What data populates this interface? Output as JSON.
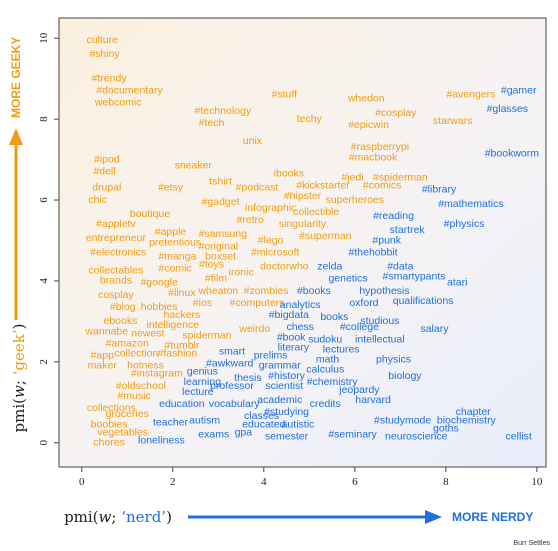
{
  "chart_data": {
    "type": "scatter",
    "xlim": [
      -0.5,
      10.2
    ],
    "ylim": [
      -0.6,
      10.5
    ],
    "x_ticks": [
      "0",
      "2",
      "4",
      "6",
      "8",
      "10"
    ],
    "y_ticks": [
      "0",
      "2",
      "4",
      "6",
      "8",
      "10"
    ],
    "xlabel_prefix": "pmi(",
    "xlabel_var": "w",
    "xlabel_sep": "; ",
    "xlabel_quote": "‘nerd’",
    "xlabel_suffix": ")",
    "ylabel_prefix": "pmi(",
    "ylabel_var": "w",
    "ylabel_sep": "; ",
    "ylabel_quote": "‘geek’",
    "ylabel_suffix": ")",
    "x_arrow_label": "MORE NERDY",
    "y_arrow_label": "MORE GEEKY",
    "credit": "Burr Settles",
    "colors": {
      "geek": "#f39c12",
      "nerd": "#1f6fe0",
      "axis_arrow_geek": "#f39c12",
      "axis_arrow_nerd": "#1f6fe0"
    },
    "points": [
      {
        "w": "culture",
        "x": 0.45,
        "y": 9.95,
        "g": 1
      },
      {
        "w": "#shiny",
        "x": 0.5,
        "y": 9.6,
        "g": 1
      },
      {
        "w": "#trendy",
        "x": 0.6,
        "y": 9.0,
        "g": 1
      },
      {
        "w": "#documentary",
        "x": 1.05,
        "y": 8.7,
        "g": 1
      },
      {
        "w": "webcomic",
        "x": 0.8,
        "y": 8.4,
        "g": 1
      },
      {
        "w": "#stuff",
        "x": 4.45,
        "y": 8.6,
        "g": 1
      },
      {
        "w": "whedon",
        "x": 6.25,
        "y": 8.5,
        "g": 1
      },
      {
        "w": "#avengers",
        "x": 8.55,
        "y": 8.6,
        "g": 1
      },
      {
        "w": "#gamer",
        "x": 9.6,
        "y": 8.7,
        "g": 0
      },
      {
        "w": "#technology",
        "x": 3.1,
        "y": 8.2,
        "g": 1
      },
      {
        "w": "techy",
        "x": 5.0,
        "y": 8.0,
        "g": 1
      },
      {
        "w": "#cosplay",
        "x": 6.9,
        "y": 8.15,
        "g": 1
      },
      {
        "w": "#glasses",
        "x": 9.35,
        "y": 8.25,
        "g": 0
      },
      {
        "w": "#tech",
        "x": 2.85,
        "y": 7.9,
        "g": 1
      },
      {
        "w": "#epicwin",
        "x": 6.3,
        "y": 7.85,
        "g": 1
      },
      {
        "w": "starwars",
        "x": 8.15,
        "y": 7.95,
        "g": 1
      },
      {
        "w": "unix",
        "x": 3.75,
        "y": 7.45,
        "g": 1
      },
      {
        "w": "#raspberrypi",
        "x": 6.55,
        "y": 7.3,
        "g": 1
      },
      {
        "w": "#macbook",
        "x": 6.4,
        "y": 7.05,
        "g": 1
      },
      {
        "w": "#bookworm",
        "x": 9.45,
        "y": 7.15,
        "g": 0
      },
      {
        "w": "#ipod",
        "x": 0.55,
        "y": 7.0,
        "g": 1
      },
      {
        "w": "sneaker",
        "x": 2.45,
        "y": 6.85,
        "g": 1
      },
      {
        "w": "#dell",
        "x": 0.5,
        "y": 6.7,
        "g": 1
      },
      {
        "w": "ibooks",
        "x": 4.55,
        "y": 6.65,
        "g": 1
      },
      {
        "w": "#jedi",
        "x": 5.95,
        "y": 6.55,
        "g": 1
      },
      {
        "w": "#spiderman",
        "x": 7.0,
        "y": 6.55,
        "g": 1
      },
      {
        "w": "tshirt",
        "x": 3.05,
        "y": 6.45,
        "g": 1
      },
      {
        "w": "#kickstarter",
        "x": 5.3,
        "y": 6.35,
        "g": 1
      },
      {
        "w": "#comics",
        "x": 6.6,
        "y": 6.35,
        "g": 1
      },
      {
        "w": "drupal",
        "x": 0.55,
        "y": 6.3,
        "g": 1
      },
      {
        "w": "#etsy",
        "x": 1.95,
        "y": 6.3,
        "g": 1
      },
      {
        "w": "#podcast",
        "x": 3.85,
        "y": 6.3,
        "g": 1
      },
      {
        "w": "#library",
        "x": 7.85,
        "y": 6.25,
        "g": 0
      },
      {
        "w": "#hipster",
        "x": 4.85,
        "y": 6.1,
        "g": 1
      },
      {
        "w": "superheroes",
        "x": 6.0,
        "y": 6.0,
        "g": 1
      },
      {
        "w": "chic",
        "x": 0.35,
        "y": 6.0,
        "g": 1
      },
      {
        "w": "#gadget",
        "x": 3.05,
        "y": 5.95,
        "g": 1
      },
      {
        "w": "#mathematics",
        "x": 8.55,
        "y": 5.9,
        "g": 0
      },
      {
        "w": "infographic",
        "x": 4.15,
        "y": 5.8,
        "g": 1
      },
      {
        "w": "collectible",
        "x": 5.15,
        "y": 5.7,
        "g": 1
      },
      {
        "w": "boutique",
        "x": 1.5,
        "y": 5.65,
        "g": 1
      },
      {
        "w": "#reading",
        "x": 6.85,
        "y": 5.6,
        "g": 0
      },
      {
        "w": "#retro",
        "x": 3.7,
        "y": 5.5,
        "g": 1
      },
      {
        "w": "singularity",
        "x": 4.85,
        "y": 5.4,
        "g": 1
      },
      {
        "w": "#physics",
        "x": 8.4,
        "y": 5.4,
        "g": 0
      },
      {
        "w": "#appletv",
        "x": 0.75,
        "y": 5.4,
        "g": 1
      },
      {
        "w": "#apple",
        "x": 1.95,
        "y": 5.2,
        "g": 1
      },
      {
        "w": "#samsung",
        "x": 3.1,
        "y": 5.15,
        "g": 1
      },
      {
        "w": "startrek",
        "x": 7.15,
        "y": 5.25,
        "g": 0
      },
      {
        "w": "#superman",
        "x": 5.35,
        "y": 5.1,
        "g": 1
      },
      {
        "w": "entrepreneur",
        "x": 0.75,
        "y": 5.05,
        "g": 1
      },
      {
        "w": "pretentious",
        "x": 2.05,
        "y": 4.95,
        "g": 1
      },
      {
        "w": "#lego",
        "x": 4.15,
        "y": 5.0,
        "g": 1
      },
      {
        "w": "#punk",
        "x": 6.7,
        "y": 5.0,
        "g": 0
      },
      {
        "w": "#original",
        "x": 3.0,
        "y": 4.85,
        "g": 1
      },
      {
        "w": "#electronics",
        "x": 0.8,
        "y": 4.7,
        "g": 1
      },
      {
        "w": "#manga",
        "x": 2.1,
        "y": 4.6,
        "g": 1
      },
      {
        "w": "#microsoft",
        "x": 4.25,
        "y": 4.7,
        "g": 1
      },
      {
        "w": "#thehobbit",
        "x": 6.4,
        "y": 4.7,
        "g": 0
      },
      {
        "w": "boxset",
        "x": 3.05,
        "y": 4.6,
        "g": 1
      },
      {
        "w": "#toys",
        "x": 2.85,
        "y": 4.4,
        "g": 1
      },
      {
        "w": "doctorwho",
        "x": 4.45,
        "y": 4.35,
        "g": 1
      },
      {
        "w": "zelda",
        "x": 5.45,
        "y": 4.35,
        "g": 0
      },
      {
        "w": "#data",
        "x": 7.0,
        "y": 4.35,
        "g": 0
      },
      {
        "w": "collectables",
        "x": 0.75,
        "y": 4.25,
        "g": 1
      },
      {
        "w": "#comic",
        "x": 2.05,
        "y": 4.3,
        "g": 1
      },
      {
        "w": "ironic",
        "x": 3.5,
        "y": 4.2,
        "g": 1
      },
      {
        "w": "#smartypants",
        "x": 7.3,
        "y": 4.1,
        "g": 0
      },
      {
        "w": "genetics",
        "x": 5.85,
        "y": 4.05,
        "g": 0
      },
      {
        "w": "brands",
        "x": 0.75,
        "y": 4.0,
        "g": 1
      },
      {
        "w": "#google",
        "x": 1.7,
        "y": 3.95,
        "g": 1
      },
      {
        "w": "#film",
        "x": 2.95,
        "y": 4.05,
        "g": 1
      },
      {
        "w": "atari",
        "x": 8.25,
        "y": 3.95,
        "g": 0
      },
      {
        "w": "wheaton",
        "x": 3.0,
        "y": 3.75,
        "g": 1
      },
      {
        "w": "#zombies",
        "x": 4.05,
        "y": 3.75,
        "g": 1
      },
      {
        "w": "#books",
        "x": 5.1,
        "y": 3.75,
        "g": 0
      },
      {
        "w": "hypothesis",
        "x": 6.65,
        "y": 3.75,
        "g": 0
      },
      {
        "w": "cosplay",
        "x": 0.75,
        "y": 3.65,
        "g": 1
      },
      {
        "w": "#linux",
        "x": 2.2,
        "y": 3.7,
        "g": 1
      },
      {
        "w": "qualifications",
        "x": 7.5,
        "y": 3.5,
        "g": 0
      },
      {
        "w": "#computers",
        "x": 3.85,
        "y": 3.45,
        "g": 1
      },
      {
        "w": "#blog",
        "x": 0.9,
        "y": 3.35,
        "g": 1
      },
      {
        "w": "hobbies",
        "x": 1.7,
        "y": 3.35,
        "g": 1
      },
      {
        "w": "#ios",
        "x": 2.65,
        "y": 3.45,
        "g": 1
      },
      {
        "w": "analytics",
        "x": 4.8,
        "y": 3.4,
        "g": 0
      },
      {
        "w": "oxford",
        "x": 6.2,
        "y": 3.45,
        "g": 0
      },
      {
        "w": "hackers",
        "x": 2.2,
        "y": 3.15,
        "g": 1
      },
      {
        "w": "#bigdata",
        "x": 4.55,
        "y": 3.15,
        "g": 0
      },
      {
        "w": "books",
        "x": 5.55,
        "y": 3.1,
        "g": 0
      },
      {
        "w": "studious",
        "x": 6.55,
        "y": 3.0,
        "g": 0
      },
      {
        "w": "ebooks",
        "x": 0.85,
        "y": 3.0,
        "g": 1
      },
      {
        "w": "intelligence",
        "x": 2.0,
        "y": 2.9,
        "g": 1
      },
      {
        "w": "weirdo",
        "x": 3.8,
        "y": 2.8,
        "g": 1
      },
      {
        "w": "chess",
        "x": 4.8,
        "y": 2.85,
        "g": 0
      },
      {
        "w": "#college",
        "x": 6.1,
        "y": 2.85,
        "g": 0
      },
      {
        "w": "salary",
        "x": 7.75,
        "y": 2.8,
        "g": 0
      },
      {
        "w": "wannabe",
        "x": 0.55,
        "y": 2.75,
        "g": 1
      },
      {
        "w": "newest",
        "x": 1.45,
        "y": 2.7,
        "g": 1
      },
      {
        "w": "spiderman",
        "x": 2.75,
        "y": 2.65,
        "g": 1
      },
      {
        "w": "#book",
        "x": 4.6,
        "y": 2.6,
        "g": 0
      },
      {
        "w": "sudoku",
        "x": 5.35,
        "y": 2.55,
        "g": 0
      },
      {
        "w": "intellectual",
        "x": 6.55,
        "y": 2.55,
        "g": 0
      },
      {
        "w": "#amazon",
        "x": 1.0,
        "y": 2.45,
        "g": 1
      },
      {
        "w": "#tumblr",
        "x": 2.2,
        "y": 2.4,
        "g": 1
      },
      {
        "w": "literary",
        "x": 4.65,
        "y": 2.35,
        "g": 0
      },
      {
        "w": "lectures",
        "x": 5.7,
        "y": 2.3,
        "g": 0
      },
      {
        "w": "#app",
        "x": 0.45,
        "y": 2.15,
        "g": 1
      },
      {
        "w": "collection",
        "x": 1.2,
        "y": 2.2,
        "g": 1
      },
      {
        "w": "#fashion",
        "x": 2.1,
        "y": 2.2,
        "g": 1
      },
      {
        "w": "smart",
        "x": 3.3,
        "y": 2.25,
        "g": 0
      },
      {
        "w": "prelims",
        "x": 4.15,
        "y": 2.15,
        "g": 0
      },
      {
        "w": "math",
        "x": 5.4,
        "y": 2.05,
        "g": 0
      },
      {
        "w": "physics",
        "x": 6.85,
        "y": 2.05,
        "g": 0
      },
      {
        "w": "maker",
        "x": 0.45,
        "y": 1.9,
        "g": 1
      },
      {
        "w": "hotness",
        "x": 1.4,
        "y": 1.9,
        "g": 1
      },
      {
        "w": "#awkward",
        "x": 3.25,
        "y": 1.95,
        "g": 0
      },
      {
        "w": "grammar",
        "x": 4.35,
        "y": 1.9,
        "g": 0
      },
      {
        "w": "calculus",
        "x": 5.35,
        "y": 1.8,
        "g": 0
      },
      {
        "w": "#instagram",
        "x": 1.65,
        "y": 1.7,
        "g": 1
      },
      {
        "w": "genius",
        "x": 2.65,
        "y": 1.75,
        "g": 0
      },
      {
        "w": "thesis",
        "x": 3.65,
        "y": 1.6,
        "g": 0
      },
      {
        "w": "#history",
        "x": 4.5,
        "y": 1.65,
        "g": 0
      },
      {
        "w": "biology",
        "x": 7.1,
        "y": 1.65,
        "g": 0
      },
      {
        "w": "#oldschool",
        "x": 1.3,
        "y": 1.4,
        "g": 1
      },
      {
        "w": "learning",
        "x": 2.65,
        "y": 1.5,
        "g": 0
      },
      {
        "w": "#chemistry",
        "x": 5.5,
        "y": 1.5,
        "g": 0
      },
      {
        "w": "professor",
        "x": 3.3,
        "y": 1.4,
        "g": 0
      },
      {
        "w": "scientist",
        "x": 4.45,
        "y": 1.4,
        "g": 0
      },
      {
        "w": "lecture",
        "x": 2.55,
        "y": 1.25,
        "g": 0
      },
      {
        "w": "jeopardy",
        "x": 6.1,
        "y": 1.3,
        "g": 0
      },
      {
        "w": "#music",
        "x": 1.15,
        "y": 1.15,
        "g": 1
      },
      {
        "w": "academic",
        "x": 4.35,
        "y": 1.05,
        "g": 0
      },
      {
        "w": "harvard",
        "x": 6.4,
        "y": 1.05,
        "g": 0
      },
      {
        "w": "education",
        "x": 2.2,
        "y": 0.95,
        "g": 0
      },
      {
        "w": "vocabulary",
        "x": 3.35,
        "y": 0.95,
        "g": 0
      },
      {
        "w": "credits",
        "x": 5.35,
        "y": 0.95,
        "g": 0
      },
      {
        "w": "collections",
        "x": 0.65,
        "y": 0.85,
        "g": 1
      },
      {
        "w": "chapter",
        "x": 8.6,
        "y": 0.75,
        "g": 0
      },
      {
        "w": "#studying",
        "x": 4.5,
        "y": 0.75,
        "g": 0
      },
      {
        "w": "groceries",
        "x": 1.0,
        "y": 0.7,
        "g": 1
      },
      {
        "w": "classes",
        "x": 3.95,
        "y": 0.65,
        "g": 0
      },
      {
        "w": "autism",
        "x": 2.7,
        "y": 0.55,
        "g": 0
      },
      {
        "w": "teacher",
        "x": 1.95,
        "y": 0.5,
        "g": 0
      },
      {
        "w": "educated",
        "x": 4.0,
        "y": 0.45,
        "g": 0
      },
      {
        "w": "#studymode",
        "x": 7.05,
        "y": 0.55,
        "g": 0
      },
      {
        "w": "biochemistry",
        "x": 8.45,
        "y": 0.55,
        "g": 0
      },
      {
        "w": "boobies",
        "x": 0.6,
        "y": 0.45,
        "g": 1
      },
      {
        "w": "autistic",
        "x": 4.75,
        "y": 0.45,
        "g": 0
      },
      {
        "w": "goths",
        "x": 8.0,
        "y": 0.35,
        "g": 0
      },
      {
        "w": "vegetables",
        "x": 0.9,
        "y": 0.25,
        "g": 1
      },
      {
        "w": "exams",
        "x": 2.9,
        "y": 0.2,
        "g": 0
      },
      {
        "w": "gpa",
        "x": 3.55,
        "y": 0.25,
        "g": 0
      },
      {
        "w": "semester",
        "x": 4.5,
        "y": 0.15,
        "g": 0
      },
      {
        "w": "#seminary",
        "x": 5.95,
        "y": 0.2,
        "g": 0
      },
      {
        "w": "neuroscience",
        "x": 7.35,
        "y": 0.15,
        "g": 0
      },
      {
        "w": "cellist",
        "x": 9.6,
        "y": 0.15,
        "g": 0
      },
      {
        "w": "chores",
        "x": 0.6,
        "y": 0.0,
        "g": 1
      },
      {
        "w": "loneliness",
        "x": 1.75,
        "y": 0.05,
        "g": 0
      }
    ]
  }
}
